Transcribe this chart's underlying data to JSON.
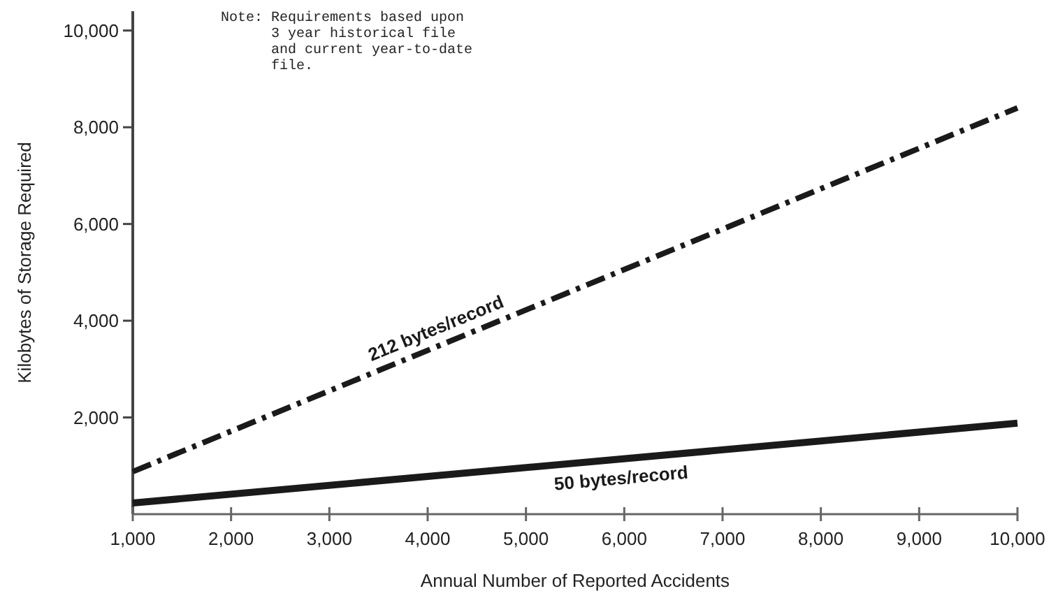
{
  "chart_data": {
    "type": "line",
    "xlabel": "Annual Number of Reported Accidents",
    "ylabel": "Kilobytes of Storage Required",
    "x": [
      1000,
      10000
    ],
    "series": [
      {
        "name": "212 bytes/record",
        "color": "#1a1a1a",
        "values": [
          880,
          8400
        ],
        "line_style": "dashed"
      },
      {
        "name": "50 bytes/record",
        "color": "#1a1a1a",
        "values": [
          230,
          1880
        ],
        "line_style": "solid"
      }
    ],
    "xlim": [
      1000,
      10000
    ],
    "xticks": [
      {
        "value": 1000,
        "label": "1,000"
      },
      {
        "value": 2000,
        "label": "2,000"
      },
      {
        "value": 3000,
        "label": "3,000"
      },
      {
        "value": 4000,
        "label": "4,000"
      },
      {
        "value": 5000,
        "label": "5,000"
      },
      {
        "value": 6000,
        "label": "6,000"
      },
      {
        "value": 7000,
        "label": "7,000"
      },
      {
        "value": 8000,
        "label": "8,000"
      },
      {
        "value": 9000,
        "label": "9,000"
      },
      {
        "value": 10000,
        "label": "10,000"
      }
    ],
    "ylim": [
      0,
      10400
    ],
    "yticks": [
      {
        "value": 2000,
        "label": "2,000"
      },
      {
        "value": 4000,
        "label": "4,000"
      },
      {
        "value": 6000,
        "label": "6,000"
      },
      {
        "value": 8000,
        "label": "8,000"
      },
      {
        "value": 10000,
        "label": "10,000"
      }
    ],
    "grid": false,
    "marker": "none",
    "annotations": [
      "Note: Requirements based upon\n      3 year historical file\n      and current year-to-date\n      file."
    ]
  }
}
